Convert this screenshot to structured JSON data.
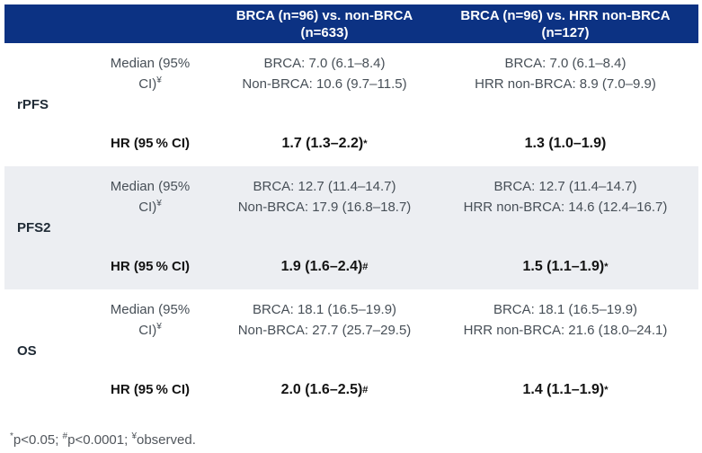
{
  "colors": {
    "header_bg": "#0c3283",
    "header_text": "#ffffff",
    "stripe_bg": "#eceef2",
    "body_text": "#474f57",
    "group_text": "#202b36",
    "hr_text": "#131313",
    "footnote_text": "#51565c"
  },
  "header": {
    "columns": [
      {
        "line1": "BRCA (n=96) vs. non-BRCA",
        "line2": "(n=633)"
      },
      {
        "line1": "BRCA (n=96) vs. HRR non-BRCA",
        "line2": "(n=127)"
      }
    ]
  },
  "labels": {
    "median_line1": "Median (95%",
    "median_line2_text": "CI)",
    "median_line2_sup": "¥",
    "hr": "HR (95 % CI)"
  },
  "sections": [
    {
      "name": "rPFS",
      "median": {
        "col3": [
          "BRCA: 7.0 (6.1–8.4)",
          "Non-BRCA: 10.6 (9.7–11.5)"
        ],
        "col4": [
          "BRCA: 7.0 (6.1–8.4)",
          "HRR non-BRCA: 8.9 (7.0–9.9)"
        ]
      },
      "hr": {
        "col3": {
          "value": "1.7 (1.3–2.2)",
          "sup": "*"
        },
        "col4": {
          "value": "1.3 (1.0–1.9)",
          "sup": ""
        }
      }
    },
    {
      "name": "PFS2",
      "median": {
        "col3": [
          "BRCA: 12.7 (11.4–14.7)",
          "Non-BRCA: 17.9 (16.8–18.7)"
        ],
        "col4": [
          "BRCA: 12.7 (11.4–14.7)",
          "HRR non-BRCA: 14.6 (12.4–16.7)"
        ]
      },
      "hr": {
        "col3": {
          "value": "1.9 (1.6–2.4)",
          "sup": "#"
        },
        "col4": {
          "value": "1.5 (1.1–1.9)",
          "sup": "*"
        }
      }
    },
    {
      "name": "OS",
      "median": {
        "col3": [
          "BRCA: 18.1 (16.5–19.9)",
          "Non-BRCA: 27.7 (25.7–29.5)"
        ],
        "col4": [
          "BRCA: 18.1 (16.5–19.9)",
          "HRR non-BRCA: 21.6 (18.0–24.1)"
        ]
      },
      "hr": {
        "col3": {
          "value": "2.0 (1.6–2.5)",
          "sup": "#"
        },
        "col4": {
          "value": "1.4 (1.1–1.9)",
          "sup": "*"
        }
      }
    }
  ],
  "footnote": {
    "parts": [
      {
        "sup": "*",
        "text": "p<0.05; "
      },
      {
        "sup": "#",
        "text": "p<0.0001; "
      },
      {
        "sup": "¥",
        "text": "observed."
      }
    ]
  }
}
